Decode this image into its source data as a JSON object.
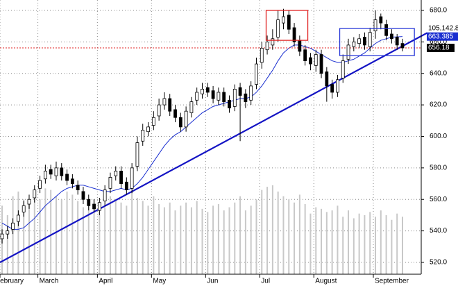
{
  "chart_data": {
    "type": "candlestick",
    "categories": [
      "February",
      null,
      null,
      null,
      null,
      null,
      null,
      "March",
      null,
      null,
      null,
      null,
      null,
      null,
      null,
      null,
      null,
      null,
      "April",
      null,
      null,
      null,
      null,
      null,
      null,
      null,
      null,
      null,
      "May",
      null,
      null,
      null,
      null,
      null,
      null,
      null,
      null,
      null,
      "Jun",
      null,
      null,
      null,
      null,
      null,
      null,
      null,
      null,
      null,
      "Jul",
      null,
      null,
      null,
      null,
      null,
      null,
      null,
      null,
      null,
      "August",
      null,
      null,
      null,
      null,
      null,
      null,
      null,
      null,
      null,
      null,
      "September",
      null,
      null,
      null,
      null,
      null
    ],
    "open": [
      535,
      538,
      541,
      546,
      552,
      557,
      561,
      567,
      573,
      579,
      575,
      580,
      576,
      573,
      569,
      565,
      560,
      557,
      553,
      559,
      567,
      575,
      578,
      571,
      567,
      581,
      597,
      603,
      607,
      613,
      620,
      624,
      617,
      612,
      606,
      615,
      623,
      627,
      631,
      629,
      623,
      628,
      623,
      619,
      631,
      627,
      623,
      633,
      647,
      655,
      658,
      663,
      672,
      677,
      669,
      661,
      655,
      650,
      645,
      652,
      641,
      633,
      628,
      637,
      649,
      657,
      659,
      663,
      657,
      667,
      676,
      671,
      665,
      663,
      659
    ],
    "high": [
      541,
      543,
      548,
      553,
      559,
      563,
      569,
      575,
      582,
      582,
      584,
      583,
      579,
      576,
      572,
      568,
      563,
      560,
      561,
      569,
      577,
      581,
      581,
      574,
      583,
      600,
      608,
      609,
      616,
      624,
      628,
      627,
      620,
      615,
      619,
      625,
      631,
      634,
      634,
      632,
      631,
      631,
      626,
      633,
      634,
      630,
      635,
      650,
      660,
      664,
      668,
      680,
      681,
      680,
      672,
      664,
      658,
      653,
      655,
      655,
      644,
      636,
      639,
      652,
      662,
      663,
      665,
      666,
      669,
      680,
      678,
      674,
      668,
      665,
      662
    ],
    "low": [
      532,
      535,
      538,
      543,
      549,
      554,
      558,
      564,
      570,
      573,
      572,
      572,
      569,
      567,
      563,
      557,
      553,
      552,
      550,
      556,
      564,
      572,
      567,
      563,
      564,
      578,
      594,
      600,
      604,
      610,
      617,
      613,
      609,
      603,
      603,
      612,
      620,
      624,
      625,
      621,
      620,
      619,
      615,
      616,
      597,
      618,
      620,
      630,
      643,
      652,
      655,
      660,
      668,
      665,
      657,
      651,
      645,
      642,
      641,
      637,
      622,
      624,
      625,
      634,
      646,
      654,
      656,
      655,
      654,
      662,
      668,
      661,
      659,
      655,
      654
    ],
    "close": [
      538,
      540,
      545,
      550,
      556,
      560,
      566,
      572,
      578,
      576,
      580,
      575,
      572,
      570,
      566,
      560,
      556,
      554,
      558,
      566,
      574,
      578,
      570,
      566,
      580,
      596,
      604,
      606,
      612,
      620,
      624,
      616,
      612,
      606,
      616,
      622,
      628,
      630,
      628,
      624,
      628,
      622,
      618,
      630,
      626,
      622,
      632,
      646,
      656,
      660,
      662,
      674,
      676,
      668,
      660,
      654,
      648,
      646,
      652,
      640,
      632,
      628,
      636,
      648,
      658,
      660,
      662,
      658,
      666,
      674,
      672,
      664,
      662,
      658,
      656.18
    ],
    "volume": [
      556,
      550,
      562,
      565,
      560,
      558,
      563,
      560,
      567,
      566,
      562,
      560,
      565,
      563,
      559,
      555,
      558,
      560,
      556,
      555,
      562,
      560,
      558,
      556,
      565,
      561,
      559,
      556,
      562,
      557,
      555,
      558,
      553,
      556,
      558,
      555,
      559,
      554,
      552,
      556,
      557,
      553,
      555,
      558,
      562,
      553,
      556,
      560,
      566,
      568,
      569,
      565,
      562,
      560,
      558,
      563,
      557,
      551,
      555,
      554,
      552,
      553,
      556,
      549,
      553,
      548,
      551,
      550,
      552,
      549,
      553,
      550,
      547,
      551,
      549
    ],
    "volume_color": "#c8c8c8",
    "ma": {
      "color": "#1a2fd0",
      "values": [
        545,
        543,
        541,
        541,
        542,
        545,
        548,
        552,
        556,
        559,
        562,
        565,
        567,
        568,
        569,
        569,
        568,
        567,
        566,
        565,
        565,
        566,
        567,
        566,
        567,
        570,
        574,
        579,
        584,
        589,
        594,
        598,
        601,
        603,
        606,
        609,
        612,
        615,
        617,
        619,
        620,
        621,
        622,
        623,
        624,
        624,
        625,
        628,
        632,
        637,
        642,
        648,
        653,
        656,
        658,
        658,
        657,
        656,
        654,
        652,
        650,
        648,
        647,
        647,
        648,
        649,
        651,
        653,
        656,
        659,
        661,
        662,
        663,
        663.2,
        663.385
      ]
    },
    "trendline": {
      "color": "#1414c4",
      "x": [
        0,
        74
      ],
      "y": [
        520.7,
        657.3
      ]
    },
    "highlight_boxes": [
      {
        "color": "#e02020",
        "x": [
          48.8,
          56.5
        ],
        "y": [
          661,
          680
        ]
      },
      {
        "color": "#2a3ad8",
        "x": [
          62.4,
          76.2
        ],
        "y": [
          651.3,
          668.5
        ]
      }
    ],
    "last_price_color": "#e02020",
    "volume_label": "105,142.83",
    "ylim": [
      512.5,
      686.6
    ],
    "yticks": [
      {
        "value": 520,
        "label": "520.0"
      },
      {
        "value": 540,
        "label": "540.0"
      },
      {
        "value": 560,
        "label": "560.0"
      },
      {
        "value": 580,
        "label": "580.0"
      },
      {
        "value": 600,
        "label": "600.0"
      },
      {
        "value": 620,
        "label": "620.0"
      },
      {
        "value": 640,
        "label": "640.0"
      },
      {
        "value": 660,
        "label": "660.0"
      },
      {
        "value": 680,
        "label": "680.0"
      }
    ],
    "grid": true
  }
}
